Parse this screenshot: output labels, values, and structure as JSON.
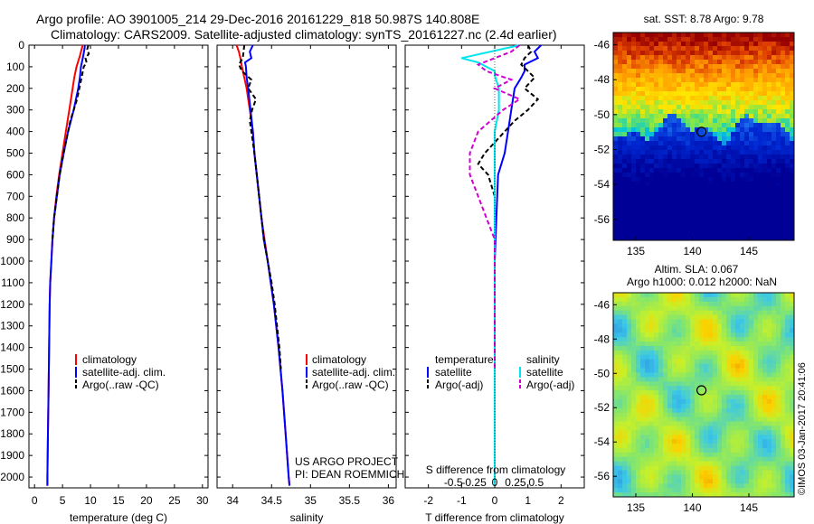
{
  "header": {
    "line1": "Argo profile: AO 3901005_214 29-Dec-2016 20161229_818 50.987S 140.808E",
    "line2": "Climatology: CARS2009. Satellite-adjusted climatology: synTS_20161227.nc (2.4d earlier)"
  },
  "depth_ticks": [
    0,
    100,
    200,
    300,
    400,
    500,
    600,
    700,
    800,
    900,
    1000,
    1100,
    1200,
    1300,
    1400,
    1500,
    1600,
    1700,
    1800,
    1900,
    2000
  ],
  "project": {
    "line1": "US ARGO PROJECT",
    "line2": "PI: DEAN ROEMMICH"
  },
  "colors": {
    "climatology": "#ff0000",
    "satellite": "#0000ff",
    "argo": "#000000",
    "sat_salinity": "#00e5ee",
    "argo_salinity": "#d000d0"
  },
  "chart_data": [
    {
      "type": "line",
      "id": "temperature",
      "xlabel": "temperature (deg C)",
      "xlim": [
        -1,
        31
      ],
      "ylim": [
        2050,
        0
      ],
      "xticks": [
        0,
        5,
        10,
        15,
        20,
        25,
        30
      ],
      "legend": [
        "climatology",
        "satellite-adj. clim.",
        "Argo(..raw -QC)"
      ],
      "series": [
        {
          "name": "climatology",
          "depth": [
            0,
            20,
            50,
            100,
            150,
            200,
            300,
            400,
            500,
            600,
            700,
            800,
            900,
            1000,
            1100,
            1200,
            1400,
            1600,
            1800,
            2000,
            2040
          ],
          "values": [
            8.6,
            8.4,
            8.1,
            7.5,
            7.1,
            6.8,
            6.2,
            5.6,
            5.0,
            4.4,
            3.9,
            3.5,
            3.2,
            3.0,
            2.8,
            2.7,
            2.6,
            2.5,
            2.4,
            2.3,
            2.3
          ]
        },
        {
          "name": "satellite-adj. clim.",
          "depth": [
            0,
            20,
            50,
            100,
            150,
            200,
            300,
            400,
            500,
            600,
            700,
            800,
            900,
            1000,
            1100,
            1200,
            1400,
            1600,
            1800,
            2000,
            2040
          ],
          "values": [
            9.0,
            8.9,
            8.7,
            8.3,
            8.1,
            7.8,
            7.0,
            6.0,
            5.2,
            4.5,
            4.0,
            3.5,
            3.2,
            3.0,
            2.8,
            2.7,
            2.6,
            2.5,
            2.4,
            2.3,
            2.3
          ]
        },
        {
          "name": "Argo(..raw -QC)",
          "depth": [
            0,
            20,
            40,
            60,
            80,
            100,
            150,
            200,
            250,
            300,
            350,
            400,
            450,
            500,
            600,
            700,
            800,
            900
          ],
          "values": [
            9.6,
            9.4,
            9.7,
            9.1,
            9.3,
            8.8,
            8.4,
            8.0,
            7.6,
            7.0,
            6.4,
            6.0,
            5.6,
            5.2,
            4.5,
            4.0,
            3.5,
            3.2
          ]
        }
      ]
    },
    {
      "type": "line",
      "id": "salinity",
      "xlabel": "salinity",
      "xlim": [
        33.8,
        36.1
      ],
      "ylim": [
        2050,
        0
      ],
      "xticks": [
        34,
        34.5,
        35,
        35.5,
        36
      ],
      "legend": [
        "climatology",
        "satellite-adj. clim.",
        "Argo(..raw -QC)"
      ],
      "series": [
        {
          "name": "climatology",
          "depth": [
            0,
            30,
            60,
            100,
            150,
            200,
            300,
            400,
            500,
            600,
            700,
            800,
            900,
            1000,
            1200,
            1400,
            1600,
            1800,
            2000,
            2040
          ],
          "values": [
            34.05,
            34.08,
            34.1,
            34.12,
            34.15,
            34.18,
            34.22,
            34.26,
            34.28,
            34.31,
            34.34,
            34.37,
            34.41,
            34.45,
            34.53,
            34.59,
            34.64,
            34.68,
            34.72,
            34.73
          ]
        },
        {
          "name": "satellite-adj. clim.",
          "depth": [
            0,
            30,
            60,
            80,
            100,
            150,
            200,
            300,
            400,
            500,
            600,
            700,
            800,
            900,
            1000,
            1200,
            1400,
            1600,
            1800,
            2000,
            2040
          ],
          "values": [
            34.26,
            34.22,
            34.24,
            34.16,
            34.17,
            34.18,
            34.2,
            34.23,
            34.26,
            34.28,
            34.31,
            34.34,
            34.37,
            34.4,
            34.45,
            34.53,
            34.59,
            34.64,
            34.68,
            34.72,
            34.73
          ]
        },
        {
          "name": "Argo(..raw -QC)",
          "depth": [
            0,
            30,
            60,
            90,
            120,
            160,
            200,
            250,
            300,
            350,
            400,
            500,
            600,
            700,
            800,
            900,
            1000,
            1100,
            1200,
            1300,
            1400,
            1500
          ],
          "values": [
            34.15,
            34.14,
            34.13,
            34.08,
            34.12,
            34.24,
            34.2,
            34.3,
            34.25,
            34.22,
            34.24,
            34.28,
            34.31,
            34.34,
            34.37,
            34.4,
            34.45,
            34.5,
            34.54,
            34.57,
            34.6,
            34.62
          ]
        }
      ]
    },
    {
      "type": "line",
      "id": "difference",
      "xlabel": "T difference from climatology",
      "xlabel_top": "S difference from climatology",
      "xlim": [
        -2.7,
        2.7
      ],
      "ylim": [
        2050,
        0
      ],
      "xticks": [
        -2,
        -1,
        0,
        1,
        2
      ],
      "xticks_top": [
        "-0.5",
        "-0.25",
        "0",
        "0.25",
        "0.5"
      ],
      "legend_temperature": {
        "title": "temperature",
        "items": [
          "satellite",
          "Argo(-adj)"
        ]
      },
      "legend_salinity": {
        "title": "salinity",
        "items": [
          "satellite",
          "Argo(-adj)"
        ]
      },
      "series": [
        {
          "name": "temperature satellite",
          "depth": [
            0,
            30,
            60,
            90,
            120,
            150,
            200,
            300,
            400,
            500,
            600,
            800,
            1000,
            1500,
            2000,
            2040
          ],
          "values": [
            1.4,
            1.2,
            1.3,
            0.9,
            0.9,
            0.8,
            0.6,
            0.5,
            0.4,
            0.3,
            0.1,
            0.05,
            0.0,
            0.0,
            0.0,
            0.0
          ]
        },
        {
          "name": "temperature Argo(-adj)",
          "depth": [
            0,
            30,
            60,
            90,
            120,
            150,
            200,
            250,
            300,
            350,
            400,
            450,
            500,
            550,
            600,
            700,
            800,
            900
          ],
          "values": [
            1.0,
            1.1,
            0.9,
            0.8,
            1.0,
            1.2,
            0.9,
            1.3,
            1.0,
            0.6,
            0.3,
            0.0,
            -0.3,
            -0.5,
            -0.2,
            0.0,
            0.0,
            0.0
          ]
        },
        {
          "name": "salinity satellite",
          "depth": [
            0,
            60,
            80,
            100,
            120,
            140,
            200,
            300,
            400,
            600,
            800,
            1000,
            1500,
            2000,
            2040
          ],
          "values": [
            0.3,
            -0.4,
            -0.2,
            -0.1,
            0.0,
            0.0,
            0.05,
            0.05,
            0.0,
            0.0,
            0.0,
            0.0,
            0.0,
            0.0,
            0.0
          ]
        },
        {
          "name": "salinity Argo(-adj)",
          "depth": [
            0,
            30,
            60,
            90,
            120,
            160,
            200,
            250,
            300,
            400,
            500,
            600,
            700,
            800,
            900,
            1000,
            1200,
            1400,
            1500
          ],
          "values": [
            0.3,
            0.2,
            0.0,
            -0.2,
            -0.1,
            0.2,
            0.0,
            0.3,
            0.1,
            -0.2,
            -0.3,
            -0.3,
            -0.2,
            -0.1,
            0.0,
            0.0,
            0.0,
            0.0,
            0.0
          ]
        }
      ]
    },
    {
      "type": "heatmap",
      "id": "sst-map",
      "title": "sat. SST: 8.78 Argo: 9.78",
      "xticks": [
        135,
        140,
        145
      ],
      "yticks": [
        -46,
        -48,
        -50,
        -52,
        -54,
        -56
      ],
      "xlim": [
        133,
        149
      ],
      "ylim": [
        -57.2,
        -45.3
      ],
      "marker": {
        "lon": 140.808,
        "lat": -50.987
      }
    },
    {
      "type": "heatmap",
      "id": "sla-map",
      "title": "Altim. SLA: 0.067",
      "subtitle": "Argo h1000: 0.012 h2000: NaN",
      "xticks": [
        135,
        140,
        145
      ],
      "yticks": [
        -46,
        -48,
        -50,
        -52,
        -54,
        -56
      ],
      "xlim": [
        133,
        149
      ],
      "ylim": [
        -57.2,
        -45.3
      ],
      "marker": {
        "lon": 140.808,
        "lat": -50.987
      },
      "credit": "©IMOS 03-Jan-2017 20:41:06"
    }
  ]
}
